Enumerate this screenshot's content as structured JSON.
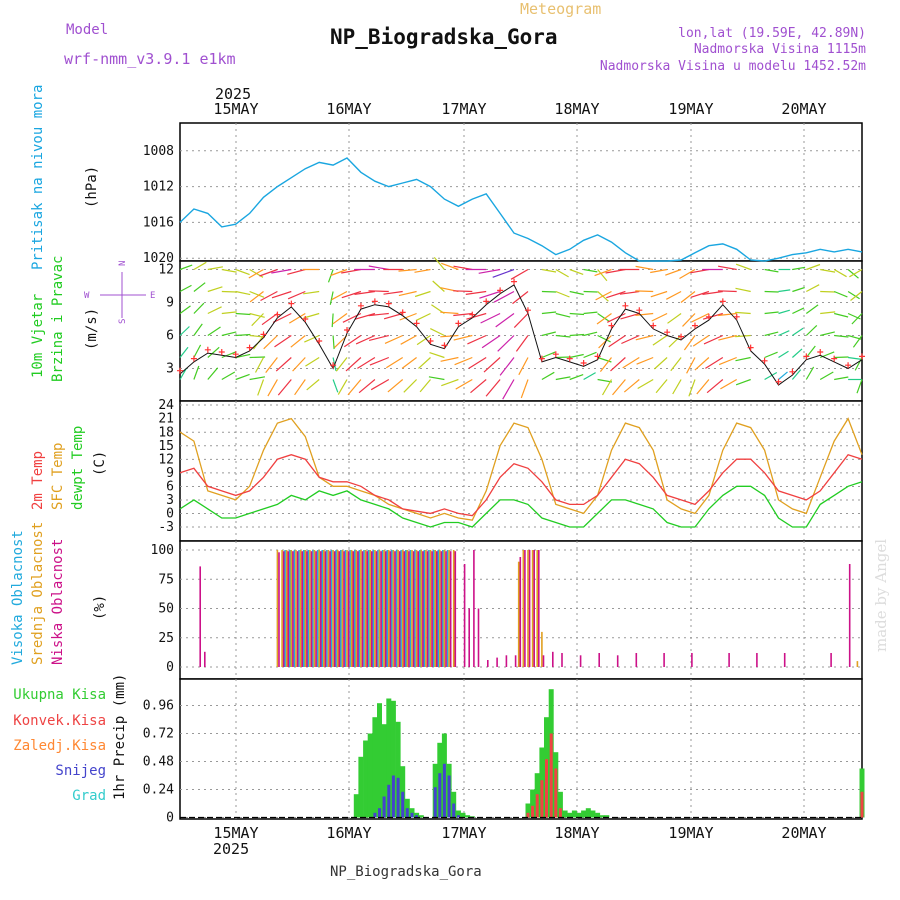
{
  "header": {
    "model_label": "Model",
    "model_name": "wrf-nmm_v3.9.1 e1km",
    "title": "NP_Biogradska_Gora",
    "subtitle": "Meteogram",
    "lonlat": "lon,lat (19.59E, 42.89N)",
    "altitude": "Nadmorska Visina 1115m",
    "model_altitude": "Nadmorska Visina u modelu 1452.52m"
  },
  "footer": {
    "station": "NP_Biogradska_Gora",
    "watermark": "made by Angel"
  },
  "time_axis": {
    "year": "2025",
    "day_labels": [
      "15MAY",
      "16MAY",
      "17MAY",
      "18MAY",
      "19MAY",
      "20MAY"
    ]
  },
  "colors": {
    "pressure": "#1aa6e0",
    "temp2m": "#f04040",
    "sfc_temp": "#e0a020",
    "dewpoint": "#22cc22",
    "high_cloud": "#22aadd",
    "mid_cloud": "#e0a020",
    "low_cloud": "#cc1188",
    "rain_total": "#33cc33",
    "rain_conv": "#ee4444",
    "freezing": "#ff8833",
    "snow": "#4444cc",
    "hail": "#33cccc"
  },
  "chart_data": [
    {
      "type": "line",
      "ylabel_left": "Pritisak na nivou mora",
      "unit": "(hPa)",
      "yticks": [
        "1008",
        "1012",
        "1016",
        "1020"
      ],
      "ylim": [
        1008,
        1022.5
      ],
      "x": [
        0,
        3,
        6,
        9,
        12,
        15,
        18,
        21,
        24,
        27,
        30,
        33,
        36,
        39,
        42,
        45,
        48,
        51,
        54,
        57,
        60,
        63,
        66,
        69,
        72,
        75,
        78,
        81,
        84,
        87,
        90,
        93,
        96,
        99,
        102,
        105,
        108,
        111,
        114,
        117,
        120,
        123,
        126,
        129,
        132,
        135,
        138,
        141,
        144,
        147
      ],
      "series": [
        {
          "key": "pressure",
          "values": [
            1016,
            1014.5,
            1015,
            1016.5,
            1016.2,
            1015,
            1013.2,
            1012,
            1011,
            1010,
            1009.3,
            1009.6,
            1008.8,
            1010.4,
            1011.4,
            1012,
            1011.6,
            1011.2,
            1012,
            1013.4,
            1014.2,
            1013.4,
            1012.8,
            1015,
            1017.2,
            1017.8,
            1018.6,
            1019.6,
            1019,
            1018,
            1017.4,
            1018.2,
            1019.4,
            1021,
            1021.6,
            1021.2,
            1020.2,
            1019.4,
            1018.6,
            1018.4,
            1019,
            1020.2,
            1020.6,
            1020,
            1019.6,
            1019.4,
            1019,
            1019.3,
            1019,
            1019.3
          ]
        }
      ]
    },
    {
      "type": "line",
      "ylabel_left": [
        "10m Vjetar",
        "Brzina i Pravac"
      ],
      "unit": "(m/s)",
      "compass": [
        "N",
        "W",
        "E",
        "S"
      ],
      "yticks": [
        "3",
        "6",
        "9",
        "12"
      ],
      "ylim": [
        0,
        12.5
      ],
      "x": [
        0,
        3,
        6,
        9,
        12,
        15,
        18,
        21,
        24,
        27,
        30,
        33,
        36,
        39,
        42,
        45,
        48,
        51,
        54,
        57,
        60,
        63,
        66,
        69,
        72,
        75,
        78,
        81,
        84,
        87,
        90,
        93,
        96,
        99,
        102,
        105,
        108,
        111,
        114,
        117,
        120,
        123,
        126,
        129,
        132,
        135,
        138,
        141,
        144,
        147
      ],
      "series": [
        {
          "key": "wind_speed",
          "values": [
            2.5,
            3.6,
            4.4,
            4.2,
            4.0,
            4.6,
            5.8,
            7.6,
            8.6,
            7.2,
            5.2,
            3.0,
            6.2,
            8.4,
            8.8,
            8.6,
            7.8,
            6.8,
            5.2,
            4.8,
            6.8,
            7.6,
            8.8,
            9.8,
            10.6,
            8.0,
            3.6,
            4.0,
            3.6,
            3.2,
            3.8,
            6.6,
            8.4,
            8.0,
            6.6,
            6.0,
            5.6,
            6.6,
            7.4,
            8.8,
            7.4,
            4.6,
            3.4,
            1.5,
            2.4,
            3.8,
            4.2,
            3.6,
            3.0,
            3.8
          ]
        },
        {
          "key": "wind_dir_deg",
          "values": [
            30,
            20,
            40,
            60,
            70,
            80,
            200,
            210,
            220,
            215,
            230,
            160,
            210,
            220,
            230,
            240,
            230,
            225,
            220,
            280,
            250,
            240,
            230,
            220,
            210,
            200,
            60,
            80,
            70,
            60,
            100,
            210,
            220,
            230,
            240,
            220,
            210,
            200,
            220,
            230,
            240,
            250,
            60,
            50,
            40,
            30,
            60,
            80,
            90,
            200
          ]
        }
      ]
    },
    {
      "type": "line",
      "ylabel_left": [
        "2m Temp",
        "SFC Temp",
        "dewpt Temp"
      ],
      "unit": "(C)",
      "yticks": [
        "-3",
        "0",
        "3",
        "6",
        "9",
        "12",
        "15",
        "18",
        "21",
        "24"
      ],
      "ylim": [
        -5,
        24
      ],
      "x": [
        0,
        3,
        6,
        9,
        12,
        15,
        18,
        21,
        24,
        27,
        30,
        33,
        36,
        39,
        42,
        45,
        48,
        51,
        54,
        57,
        60,
        63,
        66,
        69,
        72,
        75,
        78,
        81,
        84,
        87,
        90,
        93,
        96,
        99,
        102,
        105,
        108,
        111,
        114,
        117,
        120,
        123,
        126,
        129,
        132,
        135,
        138,
        141,
        144,
        147
      ],
      "series": [
        {
          "key": "sfc_temp",
          "values": [
            18,
            16,
            5,
            4,
            3,
            6,
            14,
            20,
            21,
            17,
            8,
            6,
            6,
            5,
            4,
            2,
            1,
            0,
            -1,
            0,
            -1,
            -1.5,
            5,
            15,
            20,
            19,
            12,
            2,
            1,
            0,
            4,
            14,
            20,
            19,
            14,
            3,
            1,
            0,
            4,
            14,
            20,
            19,
            14,
            3,
            1,
            0,
            8,
            16,
            21,
            13
          ]
        },
        {
          "key": "temp2m",
          "values": [
            9,
            10,
            6,
            5,
            4,
            5,
            8,
            12,
            13,
            12,
            8,
            7,
            7,
            6,
            4,
            3,
            1,
            0.5,
            0,
            1,
            0,
            -0.5,
            3,
            8,
            11,
            10,
            7,
            3,
            2,
            2,
            4,
            8,
            12,
            11,
            8,
            4,
            3,
            2,
            5,
            9,
            12,
            12,
            9,
            5,
            4,
            3,
            5,
            9,
            13,
            12
          ]
        },
        {
          "key": "dewpoint",
          "values": [
            1,
            3,
            1,
            -1,
            -1,
            0,
            1,
            2,
            4,
            3,
            5,
            4,
            5,
            3,
            2,
            1,
            -1,
            -2,
            -3,
            -2,
            -2,
            -3,
            0,
            3,
            3,
            2,
            -1,
            -2,
            -3,
            -3,
            0,
            3,
            3,
            2,
            1,
            -2,
            -3,
            -3,
            1,
            4,
            6,
            6,
            4,
            -1,
            -3,
            -3,
            2,
            4,
            6,
            7
          ]
        }
      ]
    },
    {
      "type": "bar",
      "ylabel_left": [
        "Visoka Oblacnost",
        "Srednja Oblacnost",
        "Niska Oblacnost"
      ],
      "unit": "(%)",
      "yticks": [
        "0",
        "25",
        "50",
        "75",
        "100"
      ],
      "ylim": [
        0,
        100
      ],
      "x": [
        4,
        5,
        21,
        22,
        23,
        24,
        25,
        26,
        27,
        28,
        29,
        30,
        31,
        32,
        33,
        34,
        35,
        36,
        37,
        38,
        39,
        40,
        41,
        42,
        43,
        44,
        45,
        46,
        47,
        48,
        49,
        50,
        51,
        52,
        53,
        54,
        55,
        56,
        57,
        58,
        59,
        60,
        61,
        62,
        63,
        64,
        66,
        68,
        70,
        72,
        73,
        74,
        75,
        76,
        77,
        78,
        80,
        82,
        86,
        90,
        94,
        98,
        104,
        110,
        118,
        124,
        130,
        140,
        144,
        146
      ],
      "series": [
        {
          "name": "Visoka Oblacnost",
          "key": "high",
          "values": [
            0,
            0,
            0,
            0,
            100,
            100,
            100,
            100,
            100,
            100,
            100,
            100,
            100,
            100,
            100,
            100,
            100,
            100,
            100,
            100,
            100,
            100,
            100,
            100,
            100,
            100,
            100,
            100,
            100,
            100,
            100,
            100,
            100,
            100,
            100,
            100,
            100,
            100,
            100,
            100,
            0,
            0,
            0,
            0,
            0,
            0,
            0,
            0,
            0,
            0,
            0,
            0,
            0,
            0,
            0,
            0,
            0,
            0,
            0,
            0,
            0,
            0,
            0,
            0,
            0,
            0,
            0,
            0,
            0,
            0
          ]
        },
        {
          "name": "Srednja Oblacnost",
          "key": "mid",
          "values": [
            0,
            0,
            100,
            100,
            100,
            100,
            100,
            100,
            100,
            100,
            100,
            100,
            100,
            100,
            100,
            100,
            100,
            100,
            100,
            100,
            100,
            100,
            100,
            100,
            100,
            100,
            100,
            100,
            100,
            100,
            100,
            100,
            100,
            100,
            100,
            100,
            100,
            100,
            100,
            100,
            100,
            0,
            0,
            0,
            0,
            0,
            0,
            0,
            0,
            0,
            90,
            100,
            100,
            100,
            100,
            30,
            0,
            0,
            0,
            0,
            0,
            0,
            0,
            0,
            0,
            0,
            0,
            0,
            0,
            5
          ]
        },
        {
          "name": "Niska Oblacnost",
          "key": "low",
          "values": [
            86,
            13,
            98,
            99,
            99,
            99,
            99,
            99,
            99,
            99,
            99,
            99,
            99,
            99,
            99,
            99,
            99,
            99,
            99,
            99,
            99,
            99,
            99,
            99,
            99,
            99,
            99,
            99,
            99,
            99,
            99,
            99,
            99,
            99,
            99,
            99,
            99,
            99,
            99,
            99,
            99,
            0,
            88,
            50,
            100,
            50,
            6,
            8,
            10,
            10,
            94,
            100,
            100,
            100,
            100,
            10,
            13,
            12,
            10,
            12,
            10,
            12,
            12,
            12,
            12,
            12,
            12,
            12,
            88,
            0
          ]
        }
      ]
    },
    {
      "type": "bar",
      "ylabel_left": [
        "Ukupna Kisa",
        "Konvek.Kisa",
        "Zaledj.Kisa",
        "Snijeg",
        "Grad"
      ],
      "unit": "1hr Precip (mm)",
      "yticks": [
        "0",
        "0.24",
        "0.48",
        "0.72",
        "0.96"
      ],
      "ylim": [
        0,
        1.12
      ],
      "x": [
        38,
        39,
        40,
        41,
        42,
        43,
        44,
        45,
        46,
        47,
        48,
        49,
        50,
        51,
        52,
        55,
        56,
        57,
        58,
        59,
        60,
        61,
        62,
        63,
        75,
        76,
        77,
        78,
        79,
        80,
        81,
        82,
        83,
        84,
        85,
        86,
        87,
        88,
        89,
        90,
        91,
        92,
        147
      ],
      "series": [
        {
          "name": "Ukupna Kisa",
          "key": "total",
          "values": [
            0.2,
            0.52,
            0.66,
            0.72,
            0.86,
            0.98,
            0.8,
            1.02,
            1.0,
            0.82,
            0.44,
            0.16,
            0.08,
            0.04,
            0.02,
            0.46,
            0.64,
            0.72,
            0.46,
            0.22,
            0.06,
            0.04,
            0.02,
            0.01,
            0.12,
            0.24,
            0.38,
            0.6,
            0.86,
            1.1,
            0.56,
            0.22,
            0.06,
            0.04,
            0.06,
            0.04,
            0.06,
            0.08,
            0.06,
            0.04,
            0.02,
            0.02,
            0.42
          ]
        },
        {
          "name": "Konvek.Kisa",
          "key": "conv",
          "values": [
            0,
            0,
            0,
            0,
            0,
            0,
            0,
            0,
            0,
            0,
            0,
            0,
            0,
            0,
            0,
            0,
            0,
            0,
            0,
            0,
            0,
            0,
            0,
            0,
            0.04,
            0.1,
            0.2,
            0.32,
            0.5,
            0.72,
            0.42,
            0.08,
            0,
            0,
            0,
            0,
            0,
            0,
            0,
            0,
            0,
            0,
            0.22
          ]
        },
        {
          "name": "Zaledj.Kisa",
          "key": "freezing",
          "values": [
            0,
            0,
            0,
            0,
            0,
            0,
            0,
            0,
            0,
            0,
            0,
            0,
            0,
            0,
            0,
            0,
            0,
            0,
            0,
            0,
            0,
            0,
            0,
            0,
            0,
            0,
            0,
            0,
            0,
            0,
            0,
            0,
            0,
            0,
            0,
            0,
            0,
            0,
            0,
            0,
            0,
            0,
            0
          ]
        },
        {
          "name": "Snijeg",
          "key": "snow",
          "values": [
            0,
            0,
            0,
            0,
            0.04,
            0.08,
            0.18,
            0.28,
            0.36,
            0.34,
            0.22,
            0.08,
            0.04,
            0.02,
            0,
            0.26,
            0.38,
            0.46,
            0.36,
            0.12,
            0.02,
            0,
            0,
            0,
            0,
            0,
            0,
            0,
            0,
            0,
            0,
            0,
            0,
            0,
            0,
            0,
            0,
            0,
            0,
            0,
            0,
            0,
            0
          ]
        },
        {
          "name": "Grad",
          "key": "hail",
          "values": [
            0,
            0,
            0,
            0,
            0,
            0,
            0,
            0,
            0,
            0,
            0,
            0,
            0,
            0,
            0,
            0,
            0,
            0,
            0,
            0,
            0,
            0,
            0,
            0,
            0,
            0,
            0,
            0,
            0,
            0,
            0,
            0,
            0,
            0,
            0,
            0,
            0,
            0,
            0,
            0,
            0,
            0,
            0
          ]
        }
      ]
    }
  ]
}
